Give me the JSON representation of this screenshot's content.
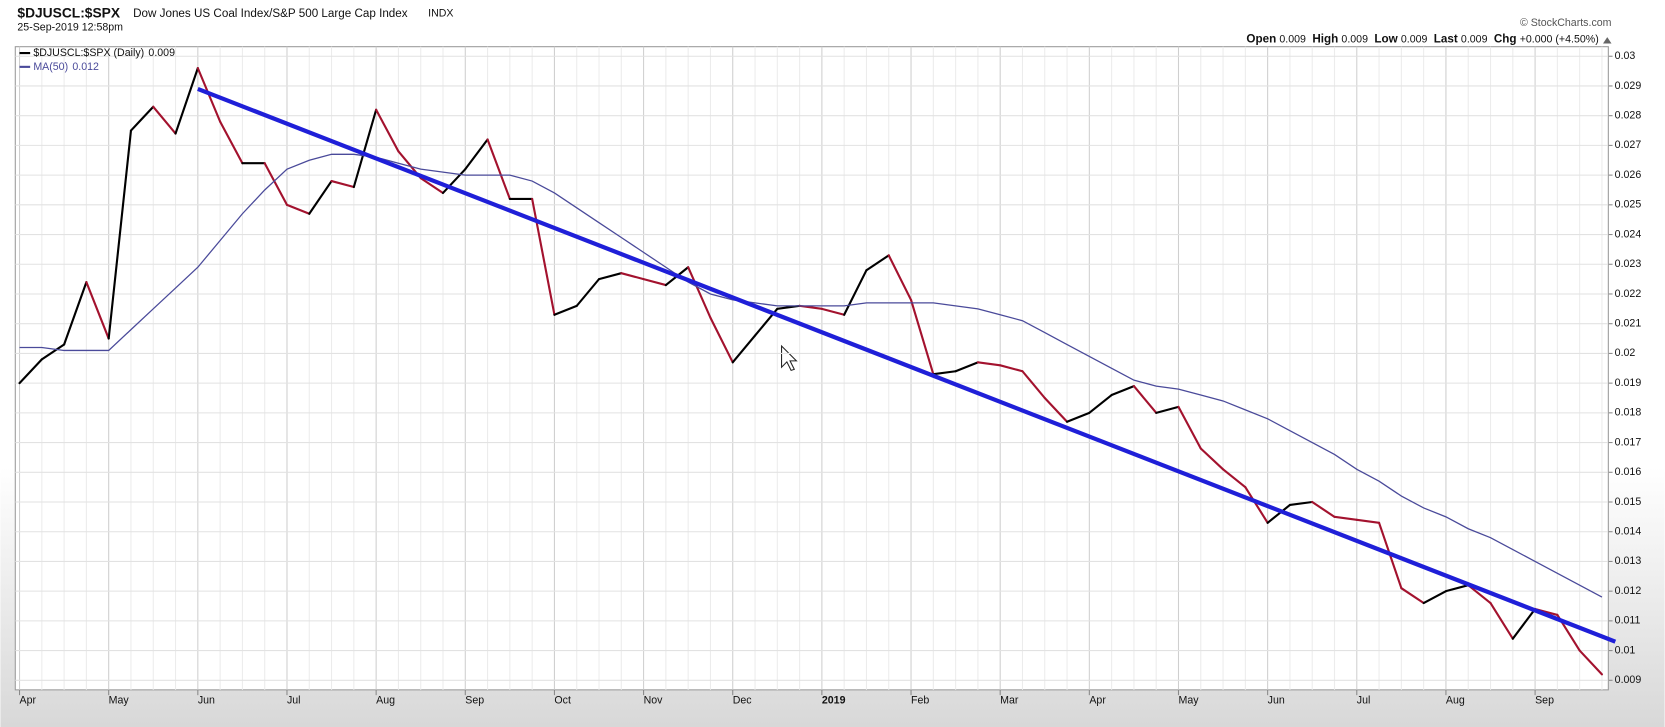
{
  "chart_data": {
    "type": "line",
    "symbol": "$DJUSCL:$SPX",
    "title": "Dow Jones US Coal Index/S&P 500 Large Cap Index",
    "exchange": "INDX",
    "date": "25-Sep-2019 12:58pm",
    "source": "© StockCharts.com",
    "quote": [
      {
        "label": "Open",
        "value": "0.009"
      },
      {
        "label": "High",
        "value": "0.009"
      },
      {
        "label": "Low",
        "value": "0.009"
      },
      {
        "label": "Last",
        "value": "0.009"
      },
      {
        "label": "Chg",
        "value": "+0.000 (+4.50%)"
      }
    ],
    "categories": [
      "Apr",
      null,
      null,
      null,
      "May",
      null,
      null,
      null,
      "Jun",
      null,
      null,
      null,
      "Jul",
      null,
      null,
      null,
      "Aug",
      null,
      null,
      null,
      "Sep",
      null,
      null,
      null,
      "Oct",
      null,
      null,
      null,
      "Nov",
      null,
      null,
      null,
      "Dec",
      null,
      null,
      null,
      "2019",
      null,
      null,
      null,
      "Feb",
      null,
      null,
      null,
      "Mar",
      null,
      null,
      null,
      "Apr",
      null,
      null,
      null,
      "May",
      null,
      null,
      null,
      "Jun",
      null,
      null,
      null,
      "Jul",
      null,
      null,
      null,
      "Aug",
      null,
      null,
      null,
      "Sep",
      null,
      null,
      null
    ],
    "series": [
      {
        "name": "$DJUSCL:$SPX (Daily)",
        "last": "0.009",
        "color": "#000000",
        "down_color": "#a3122e",
        "values": [
          0.019,
          0.0198,
          0.0203,
          0.0224,
          0.0205,
          0.0275,
          0.0283,
          0.0274,
          0.0296,
          0.0278,
          0.0264,
          0.0264,
          0.025,
          0.0247,
          0.0258,
          0.0256,
          0.0282,
          0.0268,
          0.0259,
          0.0254,
          0.0262,
          0.0272,
          0.0252,
          0.0252,
          0.0213,
          0.0216,
          0.0225,
          0.0227,
          0.0225,
          0.0223,
          0.0229,
          0.0212,
          0.0197,
          0.0206,
          0.0215,
          0.0216,
          0.0215,
          0.0213,
          0.0228,
          0.0233,
          0.0218,
          0.0193,
          0.0194,
          0.0197,
          0.0196,
          0.0194,
          0.0185,
          0.0177,
          0.018,
          0.0186,
          0.0189,
          0.018,
          0.0182,
          0.0168,
          0.0161,
          0.0155,
          0.0143,
          0.0149,
          0.015,
          0.0145,
          0.0144,
          0.0143,
          0.0121,
          0.0116,
          0.012,
          0.0122,
          0.0116,
          0.0104,
          0.0114,
          0.0112,
          0.01,
          0.0092
        ]
      },
      {
        "name": "MA(50)",
        "last": "0.012",
        "color": "#4a4a9a",
        "values": [
          0.0202,
          0.0202,
          0.0201,
          0.0201,
          0.0201,
          0.0208,
          0.0215,
          0.0222,
          0.0229,
          0.0238,
          0.0247,
          0.0255,
          0.0262,
          0.0265,
          0.0267,
          0.0267,
          0.0266,
          0.0264,
          0.0262,
          0.0261,
          0.026,
          0.026,
          0.026,
          0.0258,
          0.0254,
          0.0249,
          0.0244,
          0.0239,
          0.0234,
          0.0229,
          0.0224,
          0.022,
          0.0218,
          0.0217,
          0.0216,
          0.0216,
          0.0216,
          0.0216,
          0.0217,
          0.0217,
          0.0217,
          0.0217,
          0.0216,
          0.0215,
          0.0213,
          0.0211,
          0.0207,
          0.0203,
          0.0199,
          0.0195,
          0.0191,
          0.0189,
          0.0188,
          0.0186,
          0.0184,
          0.0181,
          0.0178,
          0.0174,
          0.017,
          0.0166,
          0.0161,
          0.0157,
          0.0152,
          0.0148,
          0.0145,
          0.0141,
          0.0138,
          0.0134,
          0.013,
          0.0126,
          0.0122,
          0.0118
        ]
      }
    ],
    "trendline": {
      "x": [
        8,
        71.6
      ],
      "y": [
        0.0289,
        0.0103
      ],
      "color": "#1f1fd8"
    },
    "ylim": [
      0.009,
      0.03
    ],
    "yticks": [
      0.009,
      0.01,
      0.011,
      0.012,
      0.013,
      0.014,
      0.015,
      0.016,
      0.017,
      0.018,
      0.019,
      0.02,
      0.021,
      0.022,
      0.023,
      0.024,
      0.025,
      0.026,
      0.027,
      0.028,
      0.029,
      0.03
    ],
    "grid": true
  }
}
